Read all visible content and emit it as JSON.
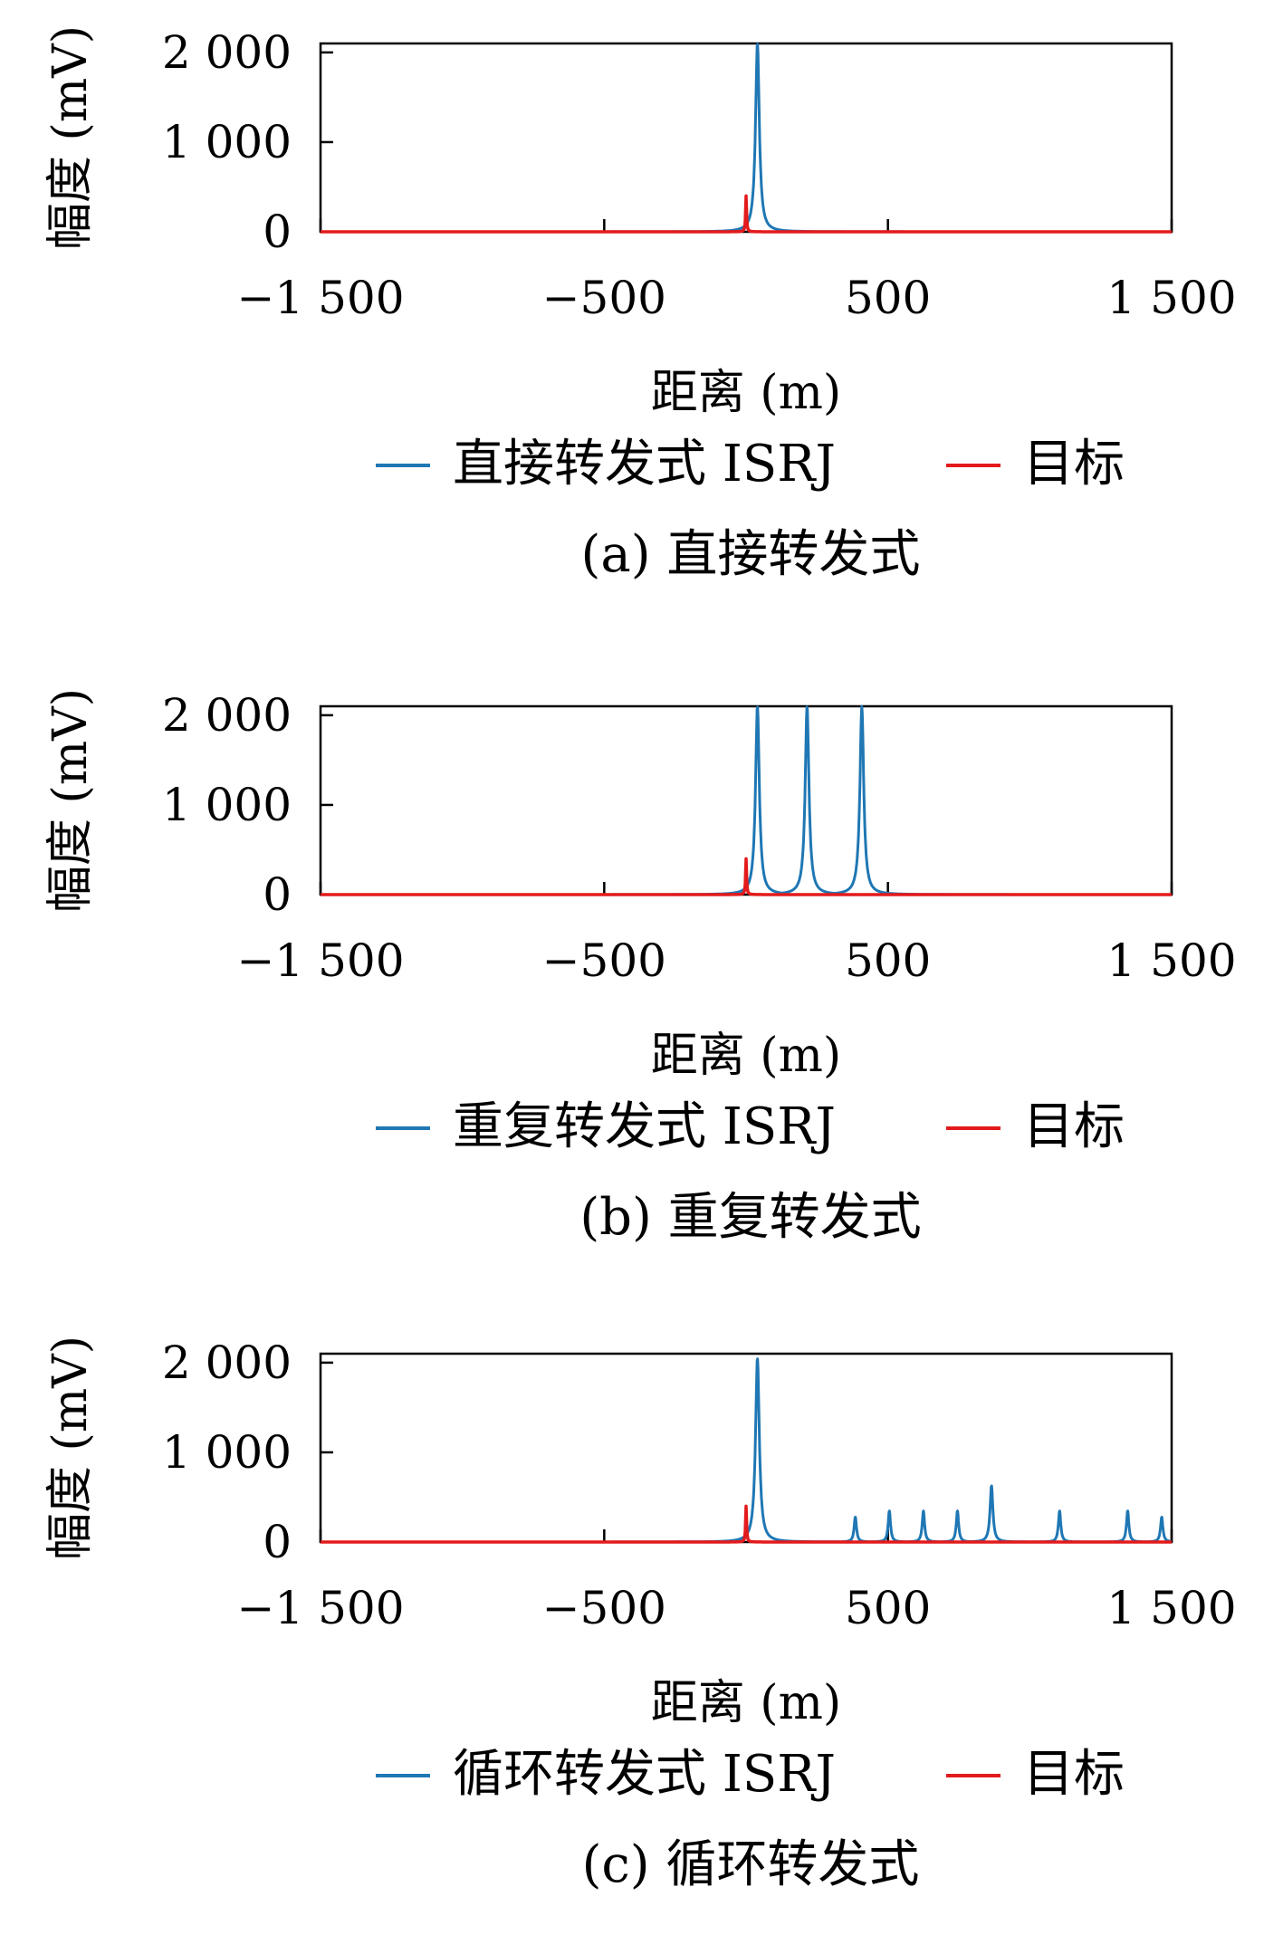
{
  "chart_data": [
    {
      "type": "line",
      "ylabel": "幅度 (mV)",
      "xlabel": "距离 (m)",
      "caption": "(a) 直接转发式",
      "xlim": [
        -1500,
        1500
      ],
      "ylim": [
        0,
        2100
      ],
      "xticks": [
        -1500,
        -500,
        500,
        1500
      ],
      "xtick_labels": [
        "−1 500",
        "−500",
        "500",
        "1 500"
      ],
      "yticks": [
        0,
        1000,
        2000
      ],
      "ytick_labels": [
        "0",
        "1 000",
        "2 000"
      ],
      "legend_placement": "bottom",
      "series": [
        {
          "name": "直接转发式 ISRJ",
          "color": "#1f77b4",
          "peaks": [
            {
              "x": 40,
              "y": 2100,
              "width": 8
            }
          ]
        },
        {
          "name": "目标",
          "color": "#e31a1c",
          "peaks": [
            {
              "x": 0,
              "y": 400,
              "width": 2
            }
          ]
        }
      ]
    },
    {
      "type": "line",
      "ylabel": "幅度 (mV)",
      "xlabel": "距离 (m)",
      "caption": "(b) 重复转发式",
      "xlim": [
        -1500,
        1500
      ],
      "ylim": [
        0,
        2100
      ],
      "xticks": [
        -1500,
        -500,
        500,
        1500
      ],
      "xtick_labels": [
        "−1 500",
        "−500",
        "500",
        "1 500"
      ],
      "yticks": [
        0,
        1000,
        2000
      ],
      "ytick_labels": [
        "0",
        "1 000",
        "2 000"
      ],
      "legend_placement": "bottom",
      "series": [
        {
          "name": "重复转发式 ISRJ",
          "color": "#1f77b4",
          "peaks": [
            {
              "x": 40,
              "y": 2100,
              "width": 8
            },
            {
              "x": 215,
              "y": 2100,
              "width": 8
            },
            {
              "x": 408,
              "y": 2100,
              "width": 8
            }
          ]
        },
        {
          "name": "目标",
          "color": "#e31a1c",
          "peaks": [
            {
              "x": 0,
              "y": 400,
              "width": 2
            }
          ]
        }
      ]
    },
    {
      "type": "line",
      "ylabel": "幅度 (mV)",
      "xlabel": "距离 (m)",
      "caption": "(c) 循环转发式",
      "xlim": [
        -1500,
        1500
      ],
      "ylim": [
        0,
        2100
      ],
      "xticks": [
        -1500,
        -500,
        500,
        1500
      ],
      "xtick_labels": [
        "−1 500",
        "−500",
        "500",
        "1 500"
      ],
      "yticks": [
        0,
        1000,
        2000
      ],
      "ytick_labels": [
        "0",
        "1 000",
        "2 000"
      ],
      "legend_placement": "bottom",
      "series": [
        {
          "name": "循环转发式 ISRJ",
          "color": "#1f77b4",
          "peaks": [
            {
              "x": 40,
              "y": 2050,
              "width": 8
            },
            {
              "x": 385,
              "y": 280,
              "width": 5
            },
            {
              "x": 505,
              "y": 350,
              "width": 5
            },
            {
              "x": 625,
              "y": 350,
              "width": 5
            },
            {
              "x": 745,
              "y": 350,
              "width": 5
            },
            {
              "x": 865,
              "y": 630,
              "width": 6
            },
            {
              "x": 1105,
              "y": 350,
              "width": 5
            },
            {
              "x": 1345,
              "y": 350,
              "width": 5
            },
            {
              "x": 1465,
              "y": 280,
              "width": 5
            }
          ]
        },
        {
          "name": "目标",
          "color": "#e31a1c",
          "peaks": [
            {
              "x": 0,
              "y": 400,
              "width": 2
            }
          ]
        }
      ]
    }
  ]
}
